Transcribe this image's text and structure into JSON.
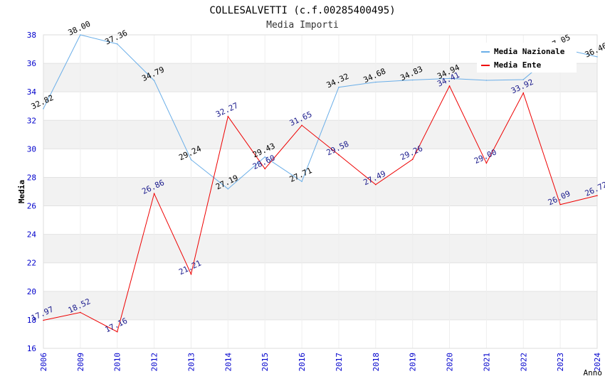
{
  "chart_data": {
    "type": "line",
    "title": "COLLESALVETTI (c.f.00285400495)",
    "subtitle": "Media Importi",
    "xlabel": "Anno",
    "ylabel": "Media",
    "ylim": [
      16,
      38
    ],
    "yticks": [
      16,
      18,
      20,
      22,
      24,
      26,
      28,
      30,
      32,
      34,
      36,
      38
    ],
    "categories": [
      "2006",
      "2009",
      "2010",
      "2012",
      "2013",
      "2014",
      "2015",
      "2016",
      "2017",
      "2018",
      "2019",
      "2020",
      "2021",
      "2022",
      "2023",
      "2024"
    ],
    "series": [
      {
        "name": "Media Nazionale",
        "color": "#6aaee8",
        "values": [
          32.82,
          38.0,
          37.36,
          34.79,
          29.24,
          27.19,
          29.43,
          27.71,
          34.32,
          34.68,
          34.83,
          34.94,
          34.81,
          34.86,
          37.05,
          36.46
        ],
        "labels": [
          "32.82",
          "38.00",
          "37.36",
          "34.79",
          "29.24",
          "27.19",
          "29.43",
          "27.71",
          "34.32",
          "34.68",
          "34.83",
          "34.94",
          "",
          "",
          "37.05",
          "36.46"
        ]
      },
      {
        "name": "Media Ente",
        "color": "#ee0000",
        "values": [
          17.97,
          18.52,
          17.16,
          26.86,
          21.21,
          32.27,
          28.6,
          31.65,
          29.58,
          27.49,
          29.26,
          34.41,
          29.0,
          33.92,
          26.09,
          26.72
        ],
        "labels": [
          "17.97",
          "18.52",
          "17.16",
          "26.86",
          "21.21",
          "32.27",
          "28.60",
          "31.65",
          "29.58",
          "27.49",
          "29.26",
          "34.41",
          "29.00",
          "33.92",
          "26.09",
          "26.72"
        ]
      }
    ],
    "grid": true,
    "legend_position": "top-right"
  }
}
